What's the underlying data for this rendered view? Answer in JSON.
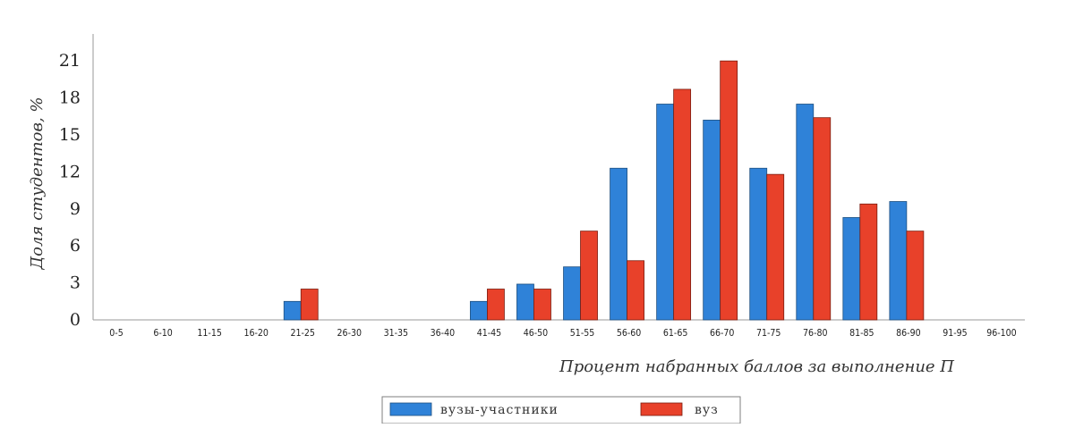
{
  "chart_data": {
    "type": "bar",
    "title": "",
    "xlabel": "Процент набранных баллов за выполнение П",
    "ylabel": "Доля студентов, %",
    "ylim": [
      0,
      24
    ],
    "yticks": [
      0,
      3,
      6,
      9,
      12,
      15,
      18,
      21
    ],
    "grid": false,
    "legend_position": "bottom-center",
    "categories": [
      "0-5",
      "6-10",
      "11-15",
      "16-20",
      "21-25",
      "26-30",
      "31-35",
      "36-40",
      "41-45",
      "46-50",
      "51-55",
      "56-60",
      "61-65",
      "66-70",
      "71-75",
      "76-80",
      "81-85",
      "86-90",
      "91-95",
      "96-100"
    ],
    "series": [
      {
        "name": "вузы-участники",
        "color": "#2f82d8",
        "values": [
          0,
          0,
          0,
          0,
          1.5,
          0,
          0,
          0,
          1.5,
          2.9,
          4.3,
          12.3,
          17.5,
          16.2,
          12.3,
          17.5,
          8.3,
          9.6,
          0,
          0
        ]
      },
      {
        "name": "вуз",
        "color": "#e8412a",
        "values": [
          0,
          0,
          0,
          0,
          2.5,
          0,
          0,
          0,
          2.5,
          2.5,
          7.2,
          4.8,
          18.7,
          21.0,
          11.8,
          16.4,
          9.4,
          7.2,
          0,
          0
        ]
      }
    ]
  }
}
